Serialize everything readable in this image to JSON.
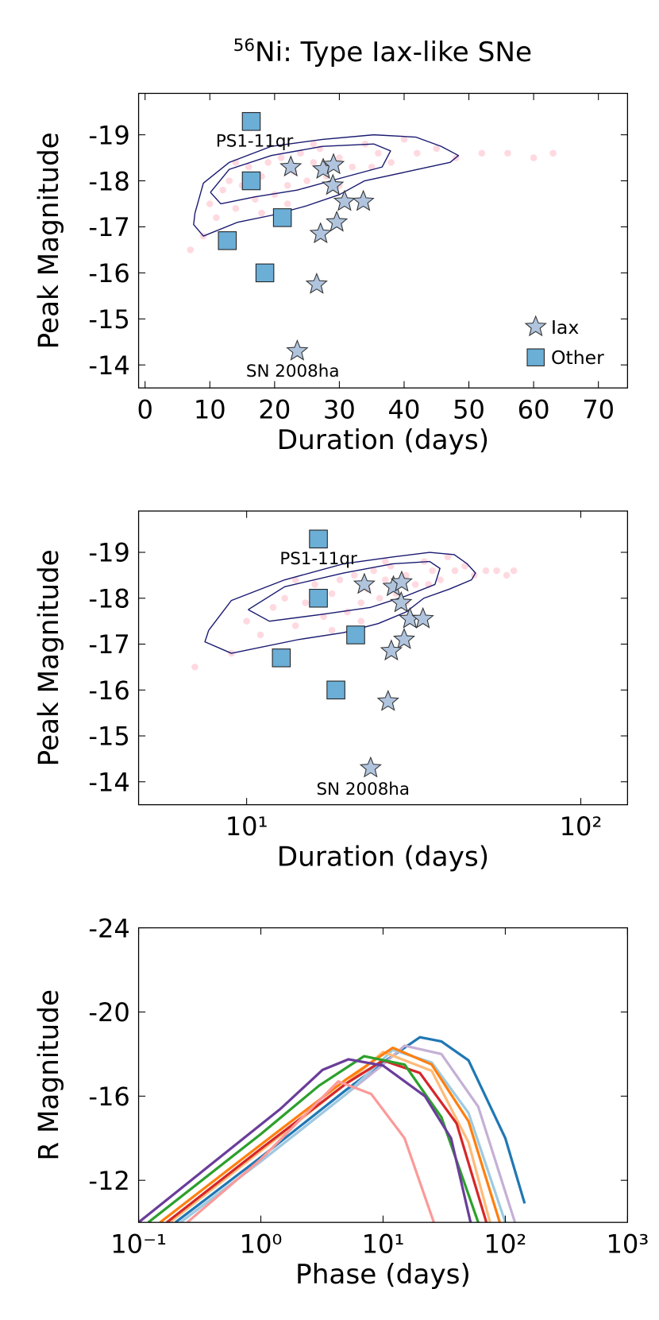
{
  "chart_data": [
    {
      "type": "scatter",
      "title_superscript": "56",
      "title": "Ni: Type Iax-like SNe",
      "xlabel": "Duration (days)",
      "ylabel": "Peak Magnitude",
      "xscale": "linear",
      "xlim": [
        -1,
        74.5
      ],
      "xticks": [
        0,
        10,
        20,
        30,
        40,
        50,
        60,
        70
      ],
      "ylim": [
        -13.5,
        -19.9
      ],
      "yticks": [
        -19,
        -18,
        -17,
        -16,
        -15,
        -14
      ],
      "legend": "lower right",
      "series": [
        {
          "marker": "circle",
          "color": "#ffc0cb",
          "x": [
            7,
            9,
            10,
            11,
            12,
            13,
            14,
            15,
            16,
            17,
            18,
            19,
            20,
            21,
            22,
            23,
            24,
            25,
            26,
            27,
            28,
            30,
            32,
            34,
            36,
            38,
            40,
            42,
            45,
            48,
            52,
            56,
            60,
            63,
            14,
            18,
            22,
            26,
            30,
            35
          ],
          "values": [
            -16.5,
            -16.8,
            -17.5,
            -17.2,
            -17.8,
            -18.0,
            -17.4,
            -17.9,
            -18.3,
            -17.6,
            -18.1,
            -18.4,
            -17.7,
            -18.5,
            -17.9,
            -18.2,
            -18.6,
            -18.0,
            -18.4,
            -18.7,
            -18.1,
            -18.5,
            -18.3,
            -18.8,
            -18.6,
            -18.4,
            -18.9,
            -18.6,
            -18.7,
            -18.5,
            -18.6,
            -18.6,
            -18.5,
            -18.6,
            -18.4,
            -17.3,
            -17.5,
            -18.8,
            -17.9,
            -18.3
          ]
        },
        {
          "marker": "line",
          "color": "#191970",
          "x": [
            7.7,
            9.0,
            13.0,
            19.5,
            27.4,
            35.3,
            41.8,
            45.7,
            48.4,
            47.1,
            40.5,
            33.9,
            30.0,
            24.8,
            19.5,
            14.3,
            9.0,
            7.5,
            7.7
          ],
          "values": [
            -17.3,
            -17.95,
            -18.4,
            -18.75,
            -18.9,
            -19.0,
            -18.95,
            -18.75,
            -18.55,
            -18.4,
            -18.2,
            -18.0,
            -17.7,
            -17.45,
            -17.25,
            -17.1,
            -16.8,
            -17.05,
            -17.3
          ]
        },
        {
          "marker": "line",
          "color": "#191970",
          "x": [
            10.1,
            13.0,
            19.5,
            27.4,
            35.3,
            37.9,
            36.6,
            30.0,
            23.5,
            16.9,
            11.7,
            10.1
          ],
          "values": [
            -17.75,
            -18.25,
            -18.55,
            -18.75,
            -18.8,
            -18.65,
            -18.3,
            -18.05,
            -17.8,
            -17.65,
            -17.5,
            -17.75
          ]
        },
        {
          "name": "Iax",
          "marker": "star",
          "color": "#b0c4de",
          "x": [
            22.5,
            27.5,
            29.1,
            29.0,
            30.8,
            33.7,
            29.6,
            27.1,
            26.5,
            23.5
          ],
          "values": [
            -18.3,
            -18.25,
            -18.35,
            -17.9,
            -17.55,
            -17.55,
            -17.1,
            -16.85,
            -15.75,
            -14.3
          ]
        },
        {
          "name": "Other",
          "marker": "square",
          "color": "#6baed6",
          "x": [
            16.4,
            16.4,
            21.2,
            12.7,
            18.5
          ],
          "values": [
            -19.29,
            -18.0,
            -17.2,
            -16.7,
            -16.0
          ]
        }
      ],
      "annotations": [
        {
          "text": "PS1-11qr",
          "x": 16.9,
          "y": -18.87
        },
        {
          "text": "SN 2008ha",
          "x": 22.8,
          "y": -13.87
        }
      ]
    },
    {
      "type": "scatter",
      "xlabel": "Duration (days)",
      "ylabel": "Peak Magnitude",
      "xscale": "log",
      "xlim": [
        4.75,
        138
      ],
      "xticks": [
        {
          "value": 10,
          "label": "10¹"
        },
        {
          "value": 100,
          "label": "10²"
        }
      ],
      "ylim": [
        -13.5,
        -19.9
      ],
      "yticks": [
        -19,
        -18,
        -17,
        -16,
        -15,
        -14
      ],
      "series": [
        {
          "marker": "circle",
          "color": "#ffc0cb",
          "x": [
            7,
            9,
            10,
            11,
            12,
            13,
            14,
            15,
            16,
            17,
            18,
            19,
            20,
            21,
            22,
            23,
            24,
            25,
            26,
            27,
            28,
            30,
            32,
            34,
            36,
            38,
            40,
            42,
            45,
            48,
            52,
            56,
            60,
            63,
            14,
            18,
            22,
            26,
            30,
            35
          ],
          "values": [
            -16.5,
            -16.8,
            -17.5,
            -17.2,
            -17.8,
            -18.0,
            -17.4,
            -17.9,
            -18.3,
            -17.6,
            -18.1,
            -18.4,
            -17.7,
            -18.5,
            -17.9,
            -18.2,
            -18.6,
            -18.0,
            -18.4,
            -18.7,
            -18.1,
            -18.5,
            -18.3,
            -18.8,
            -18.6,
            -18.4,
            -18.9,
            -18.6,
            -18.7,
            -18.5,
            -18.6,
            -18.6,
            -18.5,
            -18.6,
            -18.4,
            -17.3,
            -17.5,
            -18.8,
            -17.9,
            -18.3
          ]
        },
        {
          "marker": "line",
          "color": "#191970",
          "x": [
            7.7,
            9.0,
            13.0,
            19.5,
            27.4,
            35.3,
            41.8,
            45.7,
            48.4,
            47.1,
            40.5,
            33.9,
            30.0,
            24.8,
            19.5,
            14.3,
            9.0,
            7.5,
            7.7
          ],
          "values": [
            -17.3,
            -17.95,
            -18.4,
            -18.75,
            -18.9,
            -19.0,
            -18.95,
            -18.75,
            -18.55,
            -18.4,
            -18.2,
            -18.0,
            -17.7,
            -17.45,
            -17.25,
            -17.1,
            -16.8,
            -17.05,
            -17.3
          ]
        },
        {
          "marker": "line",
          "color": "#191970",
          "x": [
            10.1,
            13.0,
            19.5,
            27.4,
            35.3,
            37.9,
            36.6,
            30.0,
            23.5,
            16.9,
            11.7,
            10.1
          ],
          "values": [
            -17.75,
            -18.25,
            -18.55,
            -18.75,
            -18.8,
            -18.65,
            -18.3,
            -18.05,
            -17.8,
            -17.65,
            -17.5,
            -17.75
          ]
        },
        {
          "marker": "star",
          "color": "#b0c4de",
          "x": [
            22.5,
            27.5,
            29.1,
            29.0,
            30.8,
            33.7,
            29.6,
            27.1,
            26.5,
            23.5
          ],
          "values": [
            -18.3,
            -18.25,
            -18.35,
            -17.9,
            -17.55,
            -17.55,
            -17.1,
            -16.85,
            -15.75,
            -14.3
          ]
        },
        {
          "marker": "square",
          "color": "#6baed6",
          "x": [
            16.4,
            16.4,
            21.2,
            12.7,
            18.5
          ],
          "values": [
            -19.29,
            -18.0,
            -17.2,
            -16.7,
            -16.0
          ]
        }
      ],
      "annotations": [
        {
          "text": "PS1-11qr",
          "x": 16.4,
          "y": -18.87
        },
        {
          "text": "SN 2008ha",
          "x": 22.3,
          "y": -13.85
        }
      ]
    },
    {
      "type": "line",
      "xlabel": "Phase (days)",
      "ylabel": "R Magnitude",
      "xscale": "log",
      "xlim": [
        0.1,
        1000
      ],
      "xticks": [
        {
          "value": 0.1,
          "label": "10⁻¹"
        },
        {
          "value": 1,
          "label": "10⁰"
        },
        {
          "value": 10,
          "label": "10¹"
        },
        {
          "value": 100,
          "label": "10²"
        },
        {
          "value": 1000,
          "label": "10³"
        }
      ],
      "ylim": [
        -10,
        -24
      ],
      "yticks": [
        -24,
        -20,
        -16,
        -12
      ],
      "series": [
        {
          "color": "#1f77b4",
          "x": [
            0.2,
            1,
            5,
            10,
            20,
            30,
            50,
            100,
            144
          ],
          "values": [
            -10,
            -13.1,
            -16.3,
            -17.6,
            -18.8,
            -18.6,
            -17.7,
            -14.0,
            -10.9
          ]
        },
        {
          "color": "#c5b0d5",
          "x": [
            0.22,
            1,
            5,
            10,
            15,
            30,
            60,
            120
          ],
          "values": [
            -10,
            -12.9,
            -16.1,
            -17.5,
            -18.4,
            -18.0,
            -15.5,
            -10
          ]
        },
        {
          "color": "#9ecae1",
          "x": [
            0.22,
            1,
            5,
            12,
            25,
            50,
            100
          ],
          "values": [
            -10,
            -12.9,
            -16.1,
            -18.2,
            -17.6,
            -15.2,
            -10
          ]
        },
        {
          "color": "#ffbb78",
          "x": [
            0.18,
            1,
            5,
            10,
            25,
            50,
            75
          ],
          "values": [
            -10,
            -13.4,
            -16.6,
            -18.1,
            -17.2,
            -13.8,
            -10
          ]
        },
        {
          "color": "#ff7f0e",
          "x": [
            0.15,
            1,
            5,
            12,
            25,
            50,
            90
          ],
          "values": [
            -10,
            -13.7,
            -16.8,
            -18.3,
            -17.5,
            -14.8,
            -10
          ]
        },
        {
          "color": "#d62728",
          "x": [
            0.17,
            1,
            5,
            10,
            20,
            40,
            70
          ],
          "values": [
            -10,
            -13.5,
            -16.6,
            -17.7,
            -17.1,
            -14.7,
            -10
          ]
        },
        {
          "color": "#2ca02c",
          "x": [
            0.12,
            1,
            3,
            7,
            15,
            30,
            60
          ],
          "values": [
            -10,
            -14.2,
            -16.5,
            -17.9,
            -17.5,
            -15.0,
            -10
          ]
        },
        {
          "color": "#fb9a99",
          "x": [
            0.25,
            1,
            4.3,
            8,
            15,
            26
          ],
          "values": [
            -10,
            -13.0,
            -16.7,
            -16.1,
            -14.0,
            -10
          ]
        },
        {
          "color": "#6a3d9a",
          "x": [
            0.1,
            0.4,
            1.45,
            3.2,
            5.2,
            10,
            22,
            36,
            52
          ],
          "values": [
            -10,
            -12.8,
            -15.4,
            -17.25,
            -17.75,
            -17.45,
            -16.0,
            -14.0,
            -10
          ]
        }
      ]
    }
  ]
}
